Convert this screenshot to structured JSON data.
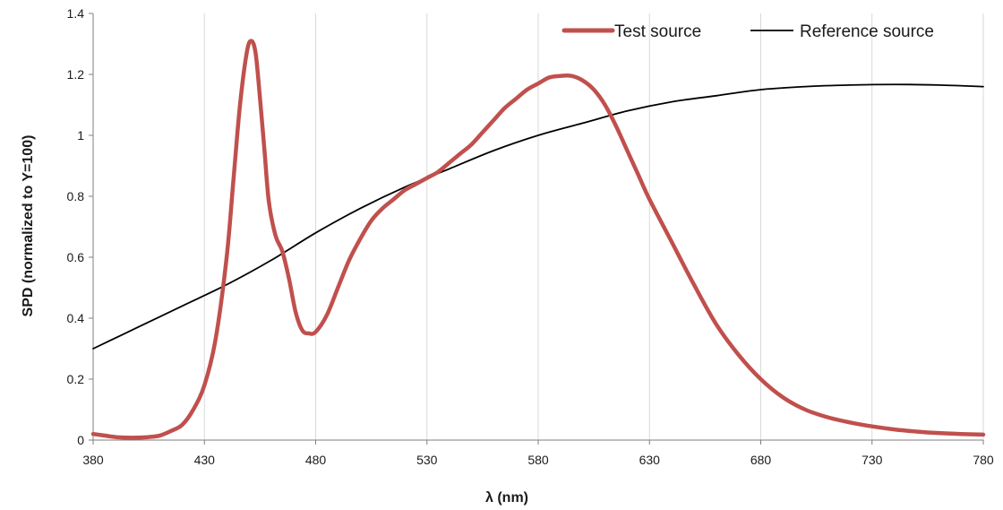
{
  "chart_data": {
    "type": "line",
    "xlabel": "λ (nm)",
    "ylabel": "SPD (normalized to Y=100)",
    "xlim": [
      380,
      780
    ],
    "ylim": [
      0,
      1.4
    ],
    "x_ticks": [
      380,
      430,
      480,
      530,
      580,
      630,
      680,
      730,
      780
    ],
    "x_tick_labels": [
      "380",
      "430",
      "480",
      "530",
      "580",
      "630",
      "680",
      "730",
      "780"
    ],
    "y_ticks": [
      0,
      0.2,
      0.4,
      0.6,
      0.8,
      1,
      1.2,
      1.4
    ],
    "y_tick_labels": [
      "0",
      "0.2",
      "0.4",
      "0.6",
      "0.8",
      "1",
      "1.2",
      "1.4"
    ],
    "grid": "vertical",
    "legend_position": "top-right",
    "series": [
      {
        "name": "Test source",
        "color": "#c0504d",
        "x": [
          380,
          385,
          390,
          395,
          400,
          405,
          410,
          415,
          420,
          425,
          430,
          435,
          440,
          443,
          446,
          449,
          451,
          453,
          455,
          457,
          459,
          462,
          465,
          468,
          471,
          474,
          477,
          480,
          485,
          490,
          495,
          500,
          505,
          510,
          515,
          520,
          525,
          530,
          535,
          540,
          545,
          550,
          555,
          560,
          565,
          570,
          575,
          580,
          585,
          590,
          595,
          600,
          605,
          610,
          615,
          620,
          625,
          630,
          640,
          650,
          660,
          670,
          680,
          690,
          700,
          710,
          720,
          730,
          740,
          750,
          760,
          770,
          780
        ],
        "y": [
          0.02,
          0.015,
          0.01,
          0.008,
          0.008,
          0.01,
          0.015,
          0.03,
          0.05,
          0.1,
          0.18,
          0.33,
          0.6,
          0.85,
          1.1,
          1.27,
          1.31,
          1.27,
          1.12,
          0.95,
          0.78,
          0.67,
          0.62,
          0.53,
          0.42,
          0.36,
          0.35,
          0.355,
          0.41,
          0.5,
          0.59,
          0.66,
          0.72,
          0.76,
          0.79,
          0.82,
          0.84,
          0.86,
          0.88,
          0.91,
          0.94,
          0.97,
          1.01,
          1.05,
          1.09,
          1.12,
          1.15,
          1.17,
          1.19,
          1.195,
          1.195,
          1.18,
          1.15,
          1.1,
          1.03,
          0.95,
          0.87,
          0.79,
          0.65,
          0.51,
          0.38,
          0.28,
          0.2,
          0.14,
          0.1,
          0.075,
          0.058,
          0.045,
          0.035,
          0.028,
          0.023,
          0.02,
          0.018
        ]
      },
      {
        "name": "Reference source",
        "color": "#000000",
        "x": [
          380,
          400,
          420,
          440,
          460,
          480,
          500,
          520,
          540,
          560,
          580,
          600,
          620,
          640,
          660,
          680,
          700,
          720,
          740,
          760,
          780
        ],
        "y": [
          0.3,
          0.37,
          0.44,
          0.51,
          0.59,
          0.68,
          0.76,
          0.83,
          0.89,
          0.95,
          1.0,
          1.04,
          1.08,
          1.11,
          1.13,
          1.15,
          1.16,
          1.165,
          1.167,
          1.165,
          1.16
        ]
      }
    ]
  }
}
